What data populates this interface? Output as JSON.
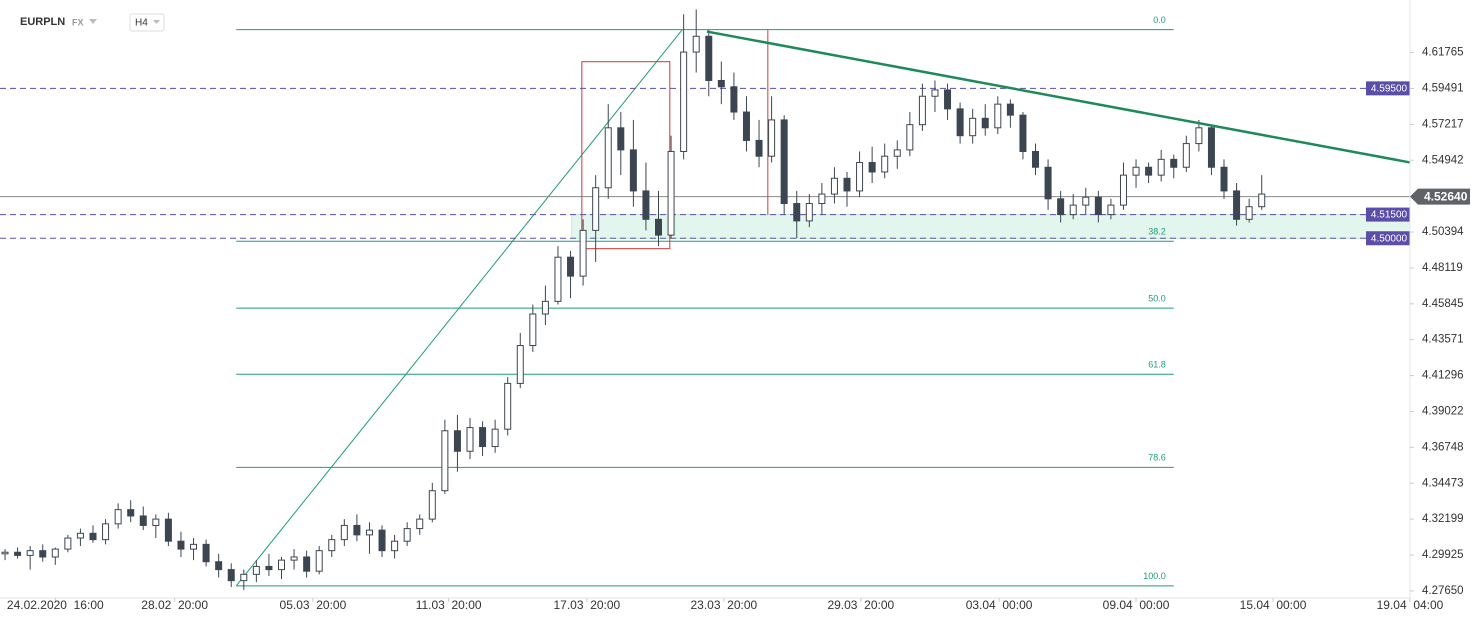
{
  "header": {
    "symbol": "EURPLN",
    "market": "FX",
    "timeframe": "H4"
  },
  "chart_data": {
    "type": "candlestick",
    "up_color": "#ffffff",
    "down_color": "#3c4650",
    "edge_color": "#3c4650",
    "xlim": [
      -0.4,
      111.8
    ],
    "ylim": [
      4.272,
      4.651
    ],
    "yticks": [
      4.61765,
      4.59491,
      4.57217,
      4.54942,
      4.50394,
      4.48119,
      4.45845,
      4.43571,
      4.41296,
      4.39022,
      4.36748,
      4.34473,
      4.32199,
      4.29925,
      {
        "value": 4.2765,
        "label": "4.27650"
      }
    ],
    "xticks": [
      {
        "value": 4,
        "label": "24.02.2020  16:00"
      },
      {
        "value": 13.5,
        "label": "28.02  20:00"
      },
      {
        "value": 24.5,
        "label": "05.03  20:00"
      },
      {
        "value": 35.3,
        "label": "11.03  20:00"
      },
      {
        "value": 46.3,
        "label": "17.03  20:00"
      },
      {
        "value": 57.2,
        "label": "23.03  20:00"
      },
      {
        "value": 68.1,
        "label": "29.03  20:00"
      },
      {
        "value": 79.1,
        "label": "03.04  00:00"
      },
      {
        "value": 90,
        "label": "09.04  00:00"
      },
      {
        "value": 100.9,
        "label": "15.04  00:00"
      },
      {
        "value": 111.8,
        "label": "19.04  04:00"
      }
    ],
    "ohlc": [
      [
        4.3,
        4.303,
        4.296,
        4.301
      ],
      [
        4.301,
        4.304,
        4.297,
        4.299
      ],
      [
        4.299,
        4.305,
        4.29,
        4.302
      ],
      [
        4.302,
        4.306,
        4.295,
        4.298
      ],
      [
        4.298,
        4.304,
        4.293,
        4.303
      ],
      [
        4.303,
        4.312,
        4.301,
        4.31
      ],
      [
        4.31,
        4.316,
        4.305,
        4.313
      ],
      [
        4.313,
        4.318,
        4.307,
        4.309
      ],
      [
        4.309,
        4.322,
        4.306,
        4.319
      ],
      [
        4.319,
        4.332,
        4.316,
        4.328
      ],
      [
        4.328,
        4.334,
        4.32,
        4.324
      ],
      [
        4.324,
        4.33,
        4.315,
        4.318
      ],
      [
        4.318,
        4.325,
        4.31,
        4.322
      ],
      [
        4.322,
        4.326,
        4.305,
        4.308
      ],
      [
        4.308,
        4.314,
        4.298,
        4.303
      ],
      [
        4.303,
        4.31,
        4.296,
        4.306
      ],
      [
        4.306,
        4.309,
        4.292,
        4.295
      ],
      [
        4.295,
        4.3,
        4.285,
        4.29
      ],
      [
        4.29,
        4.294,
        4.279,
        4.283
      ],
      [
        4.283,
        4.29,
        4.277,
        4.287
      ],
      [
        4.287,
        4.296,
        4.282,
        4.292
      ],
      [
        4.292,
        4.3,
        4.286,
        4.29
      ],
      [
        4.29,
        4.298,
        4.284,
        4.296
      ],
      [
        4.296,
        4.303,
        4.29,
        4.298
      ],
      [
        4.298,
        4.302,
        4.285,
        4.289
      ],
      [
        4.289,
        4.305,
        4.287,
        4.302
      ],
      [
        4.302,
        4.312,
        4.298,
        4.309
      ],
      [
        4.309,
        4.322,
        4.305,
        4.318
      ],
      [
        4.318,
        4.325,
        4.308,
        4.312
      ],
      [
        4.312,
        4.32,
        4.3,
        4.315
      ],
      [
        4.315,
        4.318,
        4.298,
        4.302
      ],
      [
        4.302,
        4.312,
        4.297,
        4.308
      ],
      [
        4.308,
        4.32,
        4.305,
        4.316
      ],
      [
        4.316,
        4.325,
        4.312,
        4.322
      ],
      [
        4.322,
        4.345,
        4.32,
        4.34
      ],
      [
        4.34,
        4.385,
        4.338,
        4.378
      ],
      [
        4.378,
        4.388,
        4.352,
        4.365
      ],
      [
        4.365,
        4.386,
        4.36,
        4.38
      ],
      [
        4.38,
        4.384,
        4.362,
        4.368
      ],
      [
        4.368,
        4.385,
        4.364,
        4.379
      ],
      [
        4.379,
        4.412,
        4.375,
        4.408
      ],
      [
        4.408,
        4.44,
        4.405,
        4.432
      ],
      [
        4.432,
        4.458,
        4.428,
        4.452
      ],
      [
        4.452,
        4.47,
        4.445,
        4.46
      ],
      [
        4.46,
        4.495,
        4.458,
        4.488
      ],
      [
        4.488,
        4.492,
        4.462,
        4.476
      ],
      [
        4.476,
        4.512,
        4.47,
        4.505
      ],
      [
        4.505,
        4.54,
        4.485,
        4.532
      ],
      [
        4.532,
        4.585,
        4.525,
        4.57
      ],
      [
        4.57,
        4.58,
        4.54,
        4.556
      ],
      [
        4.556,
        4.575,
        4.52,
        4.53
      ],
      [
        4.53,
        4.548,
        4.505,
        4.512
      ],
      [
        4.512,
        4.53,
        4.495,
        4.502
      ],
      [
        4.502,
        4.565,
        4.5,
        4.555
      ],
      [
        4.555,
        4.642,
        4.55,
        4.618
      ],
      [
        4.618,
        4.645,
        4.605,
        4.628
      ],
      [
        4.628,
        4.632,
        4.59,
        4.6
      ],
      [
        4.6,
        4.612,
        4.585,
        4.596
      ],
      [
        4.596,
        4.605,
        4.575,
        4.58
      ],
      [
        4.58,
        4.59,
        4.555,
        4.562
      ],
      [
        4.562,
        4.575,
        4.545,
        4.552
      ],
      [
        4.552,
        4.59,
        4.548,
        4.575
      ],
      [
        4.575,
        4.578,
        4.515,
        4.522
      ],
      [
        4.522,
        4.53,
        4.5,
        4.511
      ],
      [
        4.511,
        4.528,
        4.507,
        4.522
      ],
      [
        4.522,
        4.535,
        4.515,
        4.528
      ],
      [
        4.528,
        4.545,
        4.522,
        4.538
      ],
      [
        4.538,
        4.542,
        4.52,
        4.53
      ],
      [
        4.53,
        4.555,
        4.526,
        4.548
      ],
      [
        4.548,
        4.558,
        4.535,
        4.542
      ],
      [
        4.542,
        4.56,
        4.538,
        4.552
      ],
      [
        4.552,
        4.562,
        4.544,
        4.556
      ],
      [
        4.556,
        4.58,
        4.552,
        4.572
      ],
      [
        4.572,
        4.598,
        4.568,
        4.59
      ],
      [
        4.59,
        4.6,
        4.58,
        4.594
      ],
      [
        4.594,
        4.598,
        4.575,
        4.582
      ],
      [
        4.582,
        4.586,
        4.56,
        4.565
      ],
      [
        4.565,
        4.582,
        4.56,
        4.576
      ],
      [
        4.576,
        4.585,
        4.565,
        4.57
      ],
      [
        4.57,
        4.59,
        4.566,
        4.585
      ],
      [
        4.585,
        4.588,
        4.57,
        4.578
      ],
      [
        4.578,
        4.58,
        4.55,
        4.555
      ],
      [
        4.555,
        4.56,
        4.54,
        4.545
      ],
      [
        4.545,
        4.55,
        4.518,
        4.525
      ],
      [
        4.525,
        4.53,
        4.51,
        4.515
      ],
      [
        4.515,
        4.528,
        4.512,
        4.521
      ],
      [
        4.521,
        4.532,
        4.515,
        4.526
      ],
      [
        4.526,
        4.53,
        4.51,
        4.515
      ],
      [
        4.515,
        4.525,
        4.512,
        4.521
      ],
      [
        4.521,
        4.548,
        4.518,
        4.54
      ],
      [
        4.54,
        4.55,
        4.532,
        4.545
      ],
      [
        4.545,
        4.548,
        4.535,
        4.54
      ],
      [
        4.54,
        4.556,
        4.536,
        4.55
      ],
      [
        4.55,
        4.553,
        4.538,
        4.545
      ],
      [
        4.545,
        4.565,
        4.542,
        4.56
      ],
      [
        4.56,
        4.575,
        4.555,
        4.57
      ],
      [
        4.57,
        4.572,
        4.54,
        4.545
      ],
      [
        4.545,
        4.55,
        4.525,
        4.53
      ],
      [
        4.53,
        4.535,
        4.508,
        4.512
      ],
      [
        4.512,
        4.525,
        4.51,
        4.52
      ],
      [
        4.52,
        4.54,
        4.518,
        4.528
      ]
    ],
    "price_lines": [
      {
        "value": 4.595,
        "label": "4.59500"
      },
      {
        "value": 4.515,
        "label": "4.51500"
      },
      {
        "value": 4.5,
        "label": "4.50000"
      }
    ],
    "line_color": "#5b4ea8",
    "current_price": {
      "value": 4.5264,
      "label": "4.52640"
    },
    "fib": {
      "color": "#1f9e74",
      "from": 18.4,
      "to": 93,
      "levels": [
        {
          "level": "0.0",
          "price": 4.6322
        },
        {
          "level": "38.2",
          "price": 4.4981
        },
        {
          "level": "50.0",
          "price": 4.4557
        },
        {
          "level": "61.8",
          "price": 4.4138
        },
        {
          "level": "78.6",
          "price": 4.3548
        },
        {
          "level": "100.0",
          "price": 4.2797
        }
      ]
    },
    "fib_trend": [
      [
        18.4,
        4.2797
      ],
      [
        53.9,
        4.6323
      ]
    ],
    "trendline": {
      "color": "#1e8a5a",
      "points": [
        [
          55.85,
          4.631
        ],
        [
          111.9,
          4.5479
        ]
      ]
    },
    "zone": {
      "from": 45.1,
      "high": 4.515,
      "low": 4.5,
      "color": "#e3f6ee"
    },
    "box": {
      "color": "#cc3b3b",
      "x0": 45.9,
      "x1": 52.9,
      "high": 4.6119,
      "low": 4.4934
    },
    "marker": {
      "x": 60.7,
      "high": 4.6323,
      "low": 4.5149
    }
  }
}
